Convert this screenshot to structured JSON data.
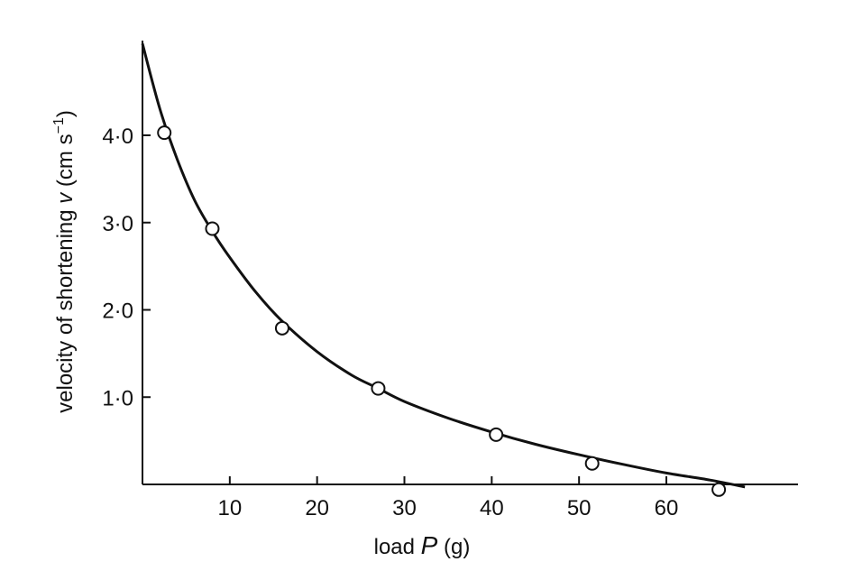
{
  "chart_data": {
    "type": "scatter",
    "title": "",
    "xlabel": "load P (g)",
    "xlabel_parts": {
      "prefix": "load ",
      "variable": "P",
      "suffix": " (g)"
    },
    "ylabel": "velocity of shortening v (cm s−1)",
    "ylabel_parts": {
      "prefix": "velocity of shortening ",
      "variable": "v",
      "unit_open": " (cm s",
      "unit_exp": "−1",
      "unit_close": ")"
    },
    "xlim": [
      0,
      75
    ],
    "ylim": [
      0,
      5.1
    ],
    "x_ticks": [
      10,
      20,
      30,
      40,
      50,
      60
    ],
    "x_tick_labels": [
      "10",
      "20",
      "30",
      "40",
      "50",
      "60"
    ],
    "y_ticks": [
      1.0,
      2.0,
      3.0,
      4.0
    ],
    "y_tick_labels": [
      "1·0",
      "2·0",
      "3·0",
      "4·0"
    ],
    "grid": false,
    "legend": "none",
    "series": [
      {
        "kind": "points",
        "marker": "open-circle",
        "x": [
          2.5,
          8,
          16,
          27,
          40.5,
          51.5,
          66
        ],
        "y": [
          4.03,
          2.93,
          1.79,
          1.1,
          0.57,
          0.24,
          -0.06
        ]
      },
      {
        "kind": "curve",
        "style": "solid",
        "x": [
          0,
          2,
          4,
          6,
          8,
          10,
          13,
          16,
          20,
          24,
          27,
          30,
          35,
          40,
          45,
          50,
          55,
          60,
          65,
          69
        ],
        "y": [
          5.05,
          4.3,
          3.72,
          3.25,
          2.9,
          2.6,
          2.2,
          1.87,
          1.52,
          1.25,
          1.1,
          0.95,
          0.76,
          0.6,
          0.46,
          0.34,
          0.23,
          0.13,
          0.05,
          -0.03
        ]
      }
    ]
  }
}
